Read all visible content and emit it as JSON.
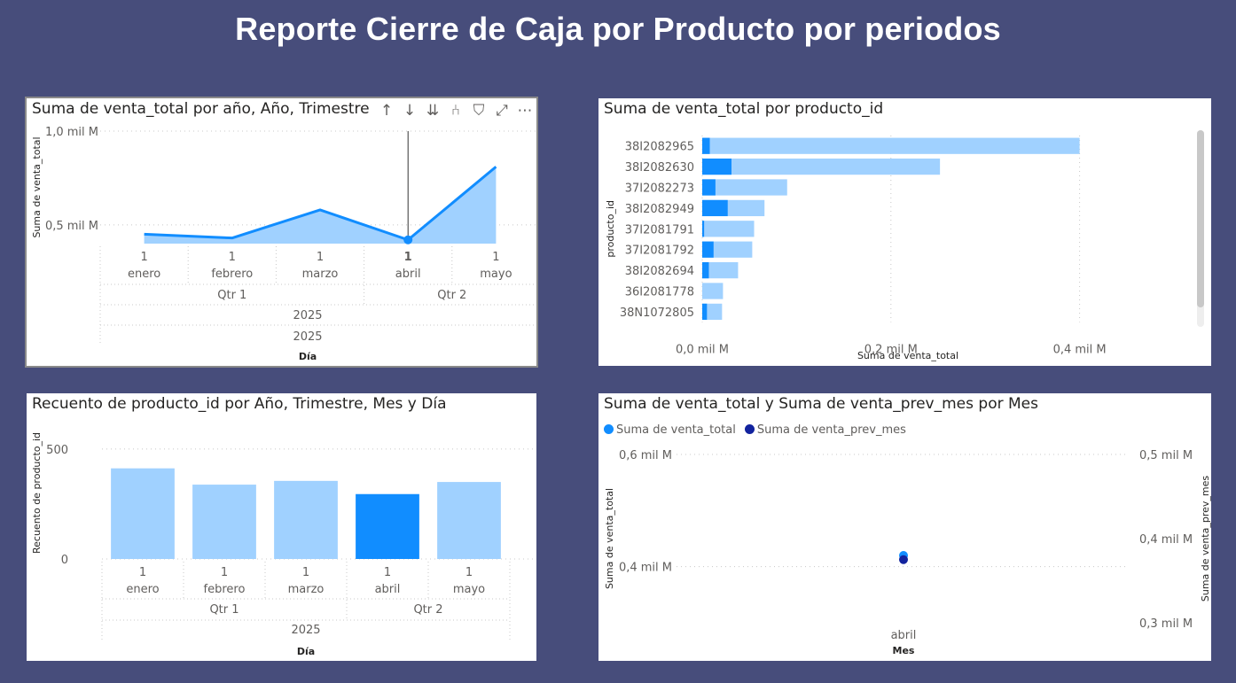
{
  "page_title": "Reporte Cierre de Caja por Producto por periodos",
  "toolbar": {
    "icons": [
      "arrow-up-icon",
      "arrow-down-icon",
      "double-arrow-down-icon",
      "expand-hierarchy-icon",
      "filter-icon",
      "focus-mode-icon",
      "more-options-icon"
    ],
    "glyphs": [
      "↑",
      "↓",
      "⇊",
      "⑃",
      "⛉",
      "⤢",
      "⋯"
    ]
  },
  "colors": {
    "background": "#474d7b",
    "light_blue": "#a0d1ff",
    "blue": "#118dff",
    "dark_blue": "#12239e",
    "gridline": "#c8c8c8"
  },
  "chart_data": [
    {
      "type": "area",
      "title": "Suma de venta_total por año, Año, Trimestre, Mes y Día",
      "title_visible": "Suma de venta_total por año, Año, Trimestre",
      "ylabel": "Suma de venta_total",
      "xlabel": "Día",
      "yticks": [
        "1,0 mil M",
        "0,5 mil M"
      ],
      "ylim": [
        0.4,
        1.0
      ],
      "x_levels": {
        "day": [
          "1",
          "1",
          "1",
          "1",
          "1"
        ],
        "month": [
          "enero",
          "febrero",
          "marzo",
          "abril",
          "mayo"
        ],
        "quarter": [
          {
            "label": "Qtr 1",
            "span": 3
          },
          {
            "label": "Qtr 2",
            "span": 2
          }
        ],
        "year": "2025",
        "year_repeat": "2025"
      },
      "values": [
        0.45,
        0.43,
        0.58,
        0.42,
        0.81
      ],
      "highlighted_index": 3
    },
    {
      "type": "bar",
      "orientation": "horizontal",
      "title": "Suma de venta_total por producto_id",
      "ylabel": "producto_id",
      "xlabel": "Suma de venta_total",
      "xticks": [
        "0,0 mil M",
        "0,2 mil M",
        "0,4 mil M"
      ],
      "xlim": [
        0,
        0.5
      ],
      "categories": [
        "38I2082965",
        "38I2082630",
        "37I2082273",
        "38I2082949",
        "37I2081791",
        "37I2081792",
        "38I2082694",
        "36I2081778",
        "38N1072805"
      ],
      "series": [
        {
          "values": [
            0.4,
            0.252,
            0.09,
            0.066,
            0.055,
            0.053,
            0.038,
            0.022,
            0.021
          ]
        },
        {
          "values": [
            0.008,
            0.031,
            0.014,
            0.027,
            0.002,
            0.012,
            0.007,
            0.0,
            0.005
          ]
        }
      ]
    },
    {
      "type": "bar",
      "title": "Recuento de producto_id por Año, Trimestre, Mes y Día",
      "ylabel": "Recuento de producto_id",
      "xlabel": "Día",
      "yticks": [
        "500",
        "0"
      ],
      "ylim": [
        0,
        600
      ],
      "x_levels": {
        "day": [
          "1",
          "1",
          "1",
          "1",
          "1"
        ],
        "month": [
          "enero",
          "febrero",
          "marzo",
          "abril",
          "mayo"
        ],
        "quarter": [
          {
            "label": "Qtr 1",
            "span": 3
          },
          {
            "label": "Qtr 2",
            "span": 2
          }
        ],
        "year": "2025"
      },
      "values": [
        412,
        338,
        355,
        295,
        350
      ],
      "highlighted_index": 3
    },
    {
      "type": "scatter",
      "title": "Suma de venta_total y Suma de venta_prev_mes por Mes",
      "xlabel": "Mes",
      "ylabel": "Suma de venta_total",
      "ylabel_right": "Suma de venta_prev_mes",
      "yticks_left": [
        "0,6 mil M",
        "0,4 mil M"
      ],
      "yticks_right": [
        "0,5 mil M",
        "0,4 mil M",
        "0,3 mil M"
      ],
      "ylim_left": [
        0.3,
        0.6
      ],
      "ylim_right": [
        0.3,
        0.5
      ],
      "categories": [
        "abril"
      ],
      "series": [
        {
          "name": "Suma de venta_total",
          "color": "#118dff",
          "values": [
            0.42
          ]
        },
        {
          "name": "Suma de venta_prev_mes",
          "color": "#12239e",
          "values": [
            0.375
          ]
        }
      ]
    }
  ]
}
